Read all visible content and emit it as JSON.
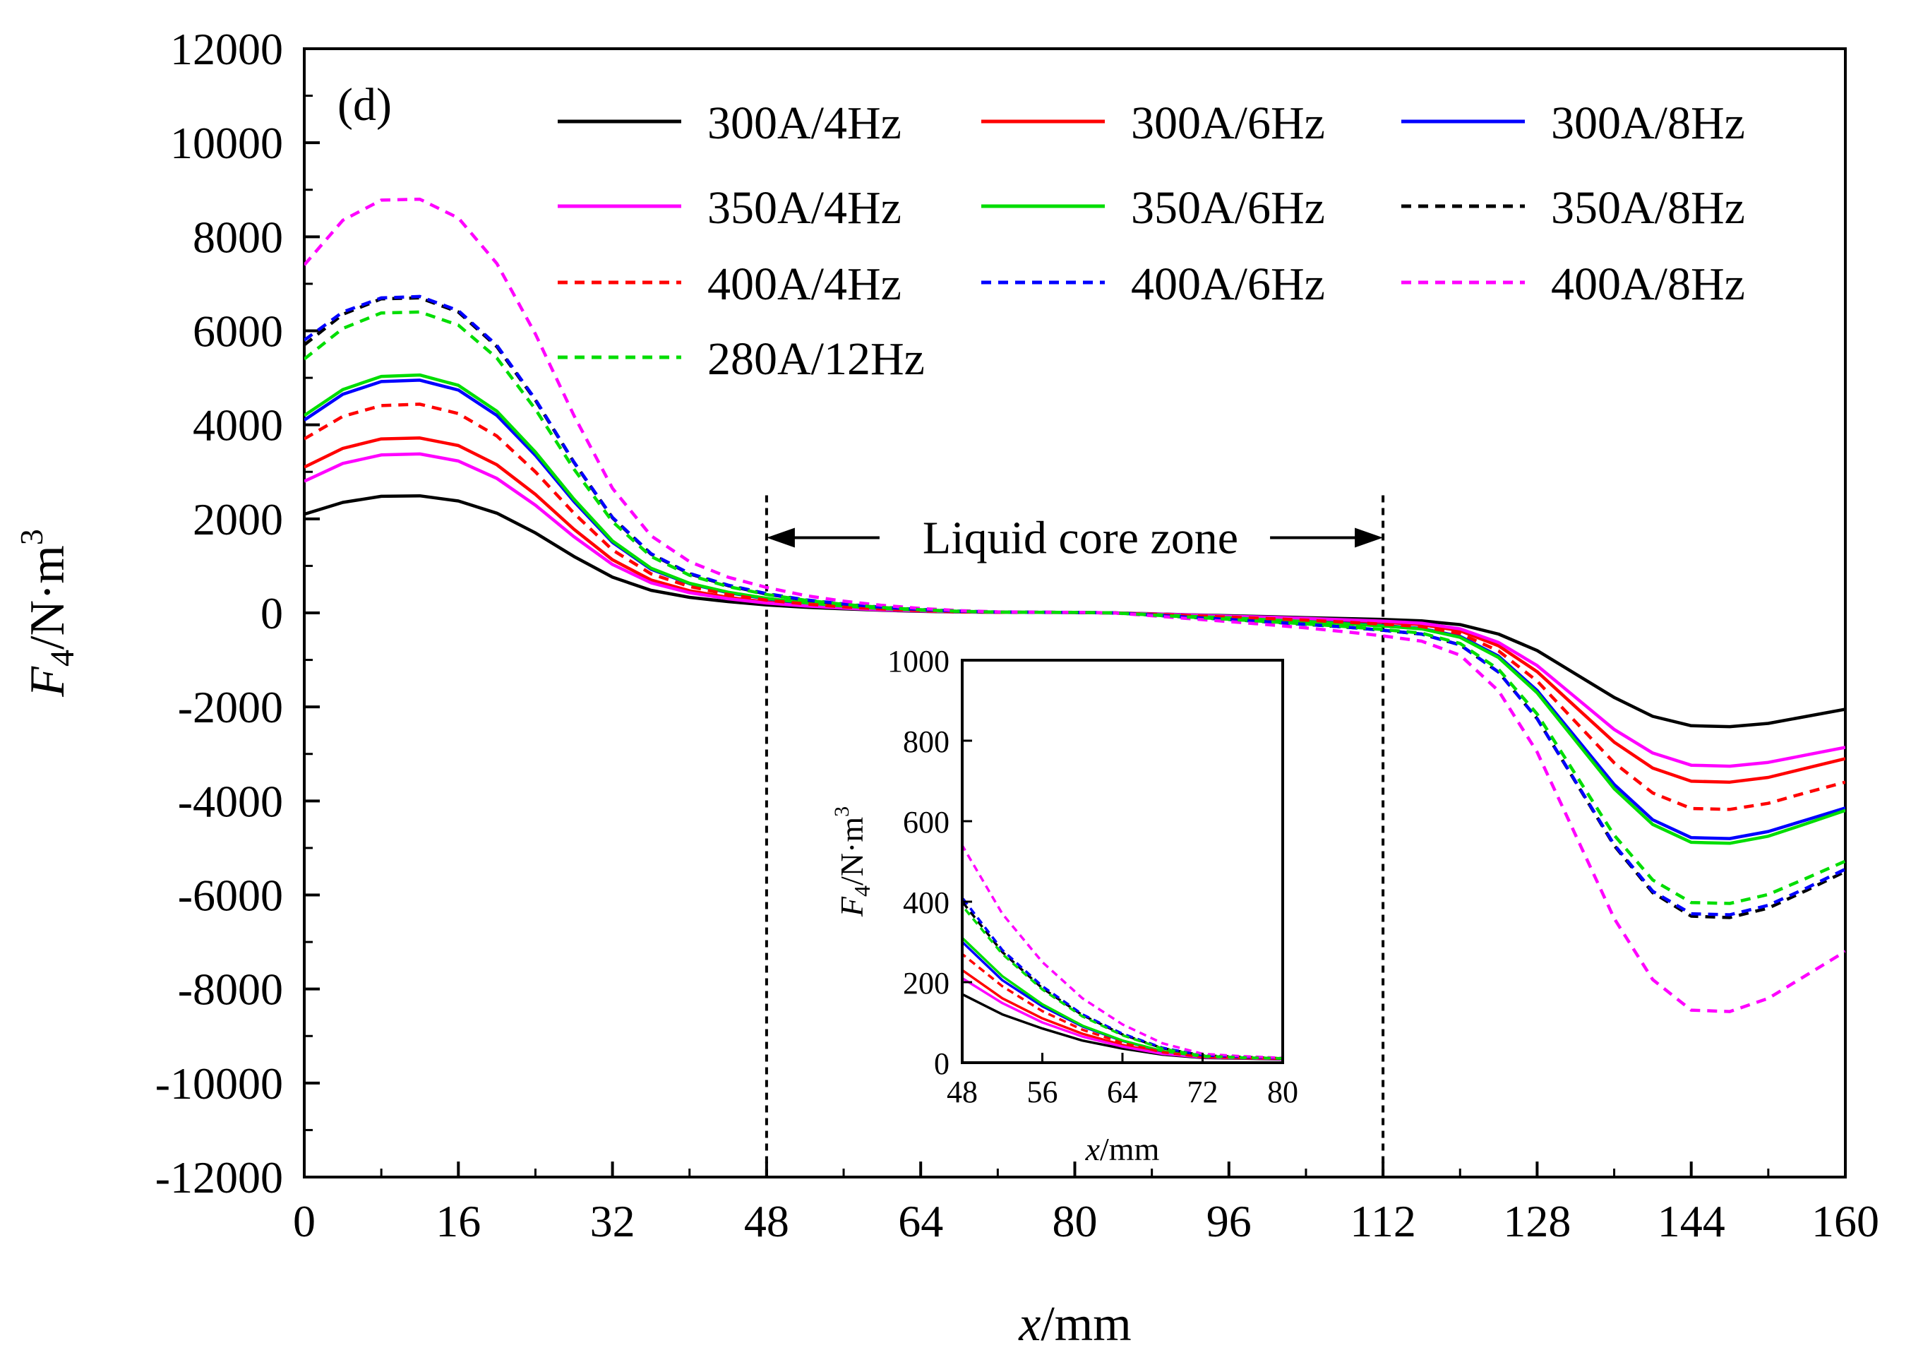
{
  "chart_data": {
    "type": "line",
    "panel_label": "(d)",
    "xlabel": {
      "var": "x",
      "unit": "/mm"
    },
    "ylabel": {
      "var": "F",
      "sub": "4",
      "unit": "/N·m",
      "sup": "3"
    },
    "xlim": [
      0,
      160
    ],
    "ylim": [
      -12000,
      12000
    ],
    "xticks": [
      0,
      16,
      32,
      48,
      64,
      80,
      96,
      112,
      128,
      144,
      160
    ],
    "yticks": [
      12000,
      10000,
      8000,
      6000,
      4000,
      2000,
      0,
      -2000,
      -4000,
      -6000,
      -8000,
      -10000,
      -12000
    ],
    "annotation": {
      "text": "Liquid core zone",
      "x_start": 48,
      "x_end": 112
    },
    "x": [
      0,
      4,
      8,
      12,
      16,
      20,
      24,
      28,
      32,
      36,
      40,
      44,
      48,
      52,
      56,
      60,
      64,
      68,
      72,
      76,
      80,
      84,
      88,
      92,
      96,
      100,
      104,
      108,
      112,
      116,
      120,
      124,
      128,
      132,
      136,
      140,
      144,
      148,
      152,
      156,
      160
    ],
    "series": [
      {
        "name": "300A/4Hz",
        "color": "#000000",
        "dash": "solid",
        "values": [
          2100,
          2350,
          2480,
          2490,
          2380,
          2120,
          1700,
          1200,
          760,
          480,
          330,
          240,
          170,
          120,
          85,
          55,
          35,
          20,
          12,
          10,
          8,
          0,
          -20,
          -40,
          -60,
          -80,
          -100,
          -120,
          -140,
          -170,
          -250,
          -450,
          -800,
          -1300,
          -1800,
          -2200,
          -2400,
          -2420,
          -2350,
          -2200,
          -2050
        ]
      },
      {
        "name": "300A/6Hz",
        "color": "#ff0000",
        "dash": "solid",
        "values": [
          3100,
          3500,
          3700,
          3720,
          3560,
          3150,
          2520,
          1780,
          1130,
          700,
          470,
          330,
          230,
          160,
          110,
          72,
          44,
          24,
          14,
          12,
          10,
          0,
          -25,
          -50,
          -75,
          -100,
          -130,
          -160,
          -200,
          -250,
          -380,
          -700,
          -1250,
          -2000,
          -2750,
          -3300,
          -3580,
          -3600,
          -3500,
          -3300,
          -3100
        ]
      },
      {
        "name": "300A/8Hz",
        "color": "#0000ff",
        "dash": "solid",
        "values": [
          4100,
          4650,
          4920,
          4950,
          4740,
          4200,
          3350,
          2370,
          1500,
          930,
          620,
          430,
          300,
          205,
          140,
          90,
          54,
          28,
          15,
          12,
          10,
          0,
          -35,
          -70,
          -100,
          -140,
          -180,
          -220,
          -270,
          -330,
          -500,
          -920,
          -1650,
          -2650,
          -3650,
          -4400,
          -4780,
          -4800,
          -4650,
          -4400,
          -4150
        ]
      },
      {
        "name": "350A/4Hz",
        "color": "#ff00ff",
        "dash": "solid",
        "values": [
          2800,
          3180,
          3360,
          3380,
          3230,
          2860,
          2290,
          1620,
          1030,
          640,
          430,
          300,
          210,
          148,
          100,
          65,
          40,
          22,
          13,
          11,
          9,
          0,
          -22,
          -45,
          -70,
          -90,
          -115,
          -145,
          -175,
          -220,
          -340,
          -630,
          -1120,
          -1800,
          -2480,
          -2980,
          -3240,
          -3260,
          -3180,
          -3020,
          -2860
        ]
      },
      {
        "name": "350A/6Hz",
        "color": "#00dd00",
        "dash": "solid",
        "values": [
          4200,
          4750,
          5030,
          5060,
          4840,
          4290,
          3420,
          2420,
          1530,
          950,
          630,
          440,
          310,
          215,
          145,
          92,
          55,
          29,
          15,
          12,
          10,
          0,
          -35,
          -70,
          -105,
          -145,
          -185,
          -230,
          -280,
          -340,
          -520,
          -950,
          -1700,
          -2720,
          -3740,
          -4500,
          -4880,
          -4900,
          -4750,
          -4480,
          -4200
        ]
      },
      {
        "name": "350A/8Hz",
        "color": "#000000",
        "dash": "dashed",
        "values": [
          5700,
          6350,
          6680,
          6700,
          6400,
          5660,
          4520,
          3200,
          2020,
          1250,
          830,
          580,
          400,
          275,
          185,
          118,
          70,
          36,
          18,
          14,
          11,
          0,
          -45,
          -95,
          -140,
          -190,
          -245,
          -300,
          -370,
          -450,
          -680,
          -1260,
          -2250,
          -3600,
          -4950,
          -5950,
          -6450,
          -6480,
          -6280,
          -5900,
          -5500
        ]
      },
      {
        "name": "400A/4Hz",
        "color": "#ff0000",
        "dash": "dashed",
        "values": [
          3700,
          4180,
          4410,
          4440,
          4240,
          3760,
          3000,
          2120,
          1340,
          830,
          560,
          390,
          270,
          190,
          128,
          82,
          49,
          26,
          14,
          12,
          10,
          0,
          -30,
          -60,
          -90,
          -120,
          -155,
          -195,
          -240,
          -290,
          -440,
          -810,
          -1450,
          -2320,
          -3190,
          -3830,
          -4160,
          -4180,
          -4050,
          -3820,
          -3600
        ]
      },
      {
        "name": "400A/6Hz",
        "color": "#0000ff",
        "dash": "dashed",
        "values": [
          5800,
          6400,
          6700,
          6730,
          6430,
          5690,
          4540,
          3210,
          2030,
          1260,
          840,
          590,
          410,
          280,
          190,
          120,
          72,
          37,
          18,
          14,
          11,
          0,
          -45,
          -95,
          -140,
          -190,
          -245,
          -300,
          -370,
          -450,
          -680,
          -1260,
          -2250,
          -3590,
          -4930,
          -5920,
          -6400,
          -6420,
          -6220,
          -5850,
          -5450
        ]
      },
      {
        "name": "400A/8Hz",
        "color": "#ff00ff",
        "dash": "dashed",
        "values": [
          7400,
          8350,
          8780,
          8800,
          8400,
          7430,
          5930,
          4200,
          2650,
          1640,
          1090,
          760,
          540,
          370,
          250,
          160,
          95,
          48,
          22,
          16,
          12,
          0,
          -60,
          -125,
          -185,
          -250,
          -320,
          -400,
          -490,
          -600,
          -900,
          -1660,
          -2960,
          -4730,
          -6500,
          -7800,
          -8450,
          -8480,
          -8200,
          -7700,
          -7200
        ]
      },
      {
        "name": "280A/12Hz",
        "color": "#00dd00",
        "dash": "dashed",
        "values": [
          5400,
          6050,
          6380,
          6400,
          6120,
          5420,
          4330,
          3060,
          1940,
          1200,
          800,
          560,
          390,
          270,
          182,
          115,
          68,
          35,
          17,
          13,
          11,
          0,
          -45,
          -90,
          -135,
          -185,
          -235,
          -290,
          -355,
          -430,
          -650,
          -1200,
          -2150,
          -3440,
          -4730,
          -5680,
          -6160,
          -6180,
          -5990,
          -5640,
          -5280
        ]
      }
    ],
    "inset": {
      "xlabel": {
        "var": "x",
        "unit": "/mm"
      },
      "ylabel": {
        "var": "F",
        "sub": "4",
        "unit": "/N·m",
        "sup": "3"
      },
      "xlim": [
        48,
        80
      ],
      "ylim": [
        0,
        1000
      ],
      "xticks": [
        48,
        56,
        64,
        72,
        80
      ],
      "yticks": [
        0,
        200,
        400,
        600,
        800,
        1000
      ]
    }
  }
}
